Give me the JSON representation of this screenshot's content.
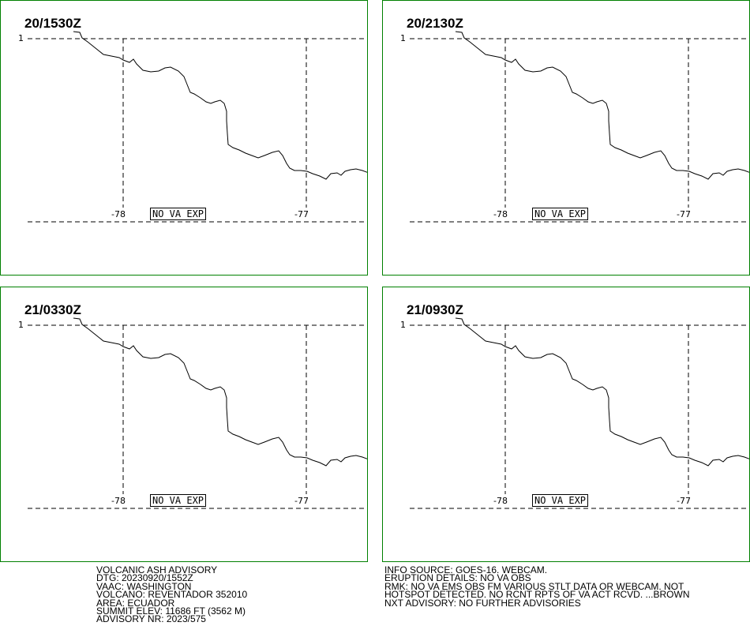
{
  "panels": [
    {
      "time": "20/1530Z",
      "status": "NO VA EXP"
    },
    {
      "time": "20/2130Z",
      "status": "NO VA EXP"
    },
    {
      "time": "21/0330Z",
      "status": "NO VA EXP"
    },
    {
      "time": "21/0930Z",
      "status": "NO VA EXP"
    }
  ],
  "grid": {
    "lat_label": "1",
    "lon_labels": [
      "-78",
      "-77"
    ]
  },
  "advisory": {
    "header": "VOLCANIC ASH ADVISORY",
    "dtg": "DTG: 20230920/1552Z",
    "vaac": "VAAC: WASHINGTON",
    "volcano": "VOLCANO: REVENTADOR 352010",
    "area": "AREA: ECUADOR",
    "summit": "SUMMIT ELEV: 11686 FT (3562 M)",
    "advisory_nr": "ADVISORY NR: 2023/575"
  },
  "info": {
    "source": "INFO SOURCE: GOES-16. WEBCAM.",
    "eruption": "ERUPTION DETAILS: NO VA OBS",
    "rmk1": "RMK: NO VA EMS OBS FM VARIOUS STLT DATA OR WEBCAM. NOT",
    "rmk2": "HOTSPOT DETECTED. NO RCNT RPTS OF VA ACT RCVD. ...BROWN",
    "next": "NXT ADVISORY: NO FURTHER ADVISORIES"
  },
  "colors": {
    "frame": "#008000",
    "lines": "#000000"
  }
}
